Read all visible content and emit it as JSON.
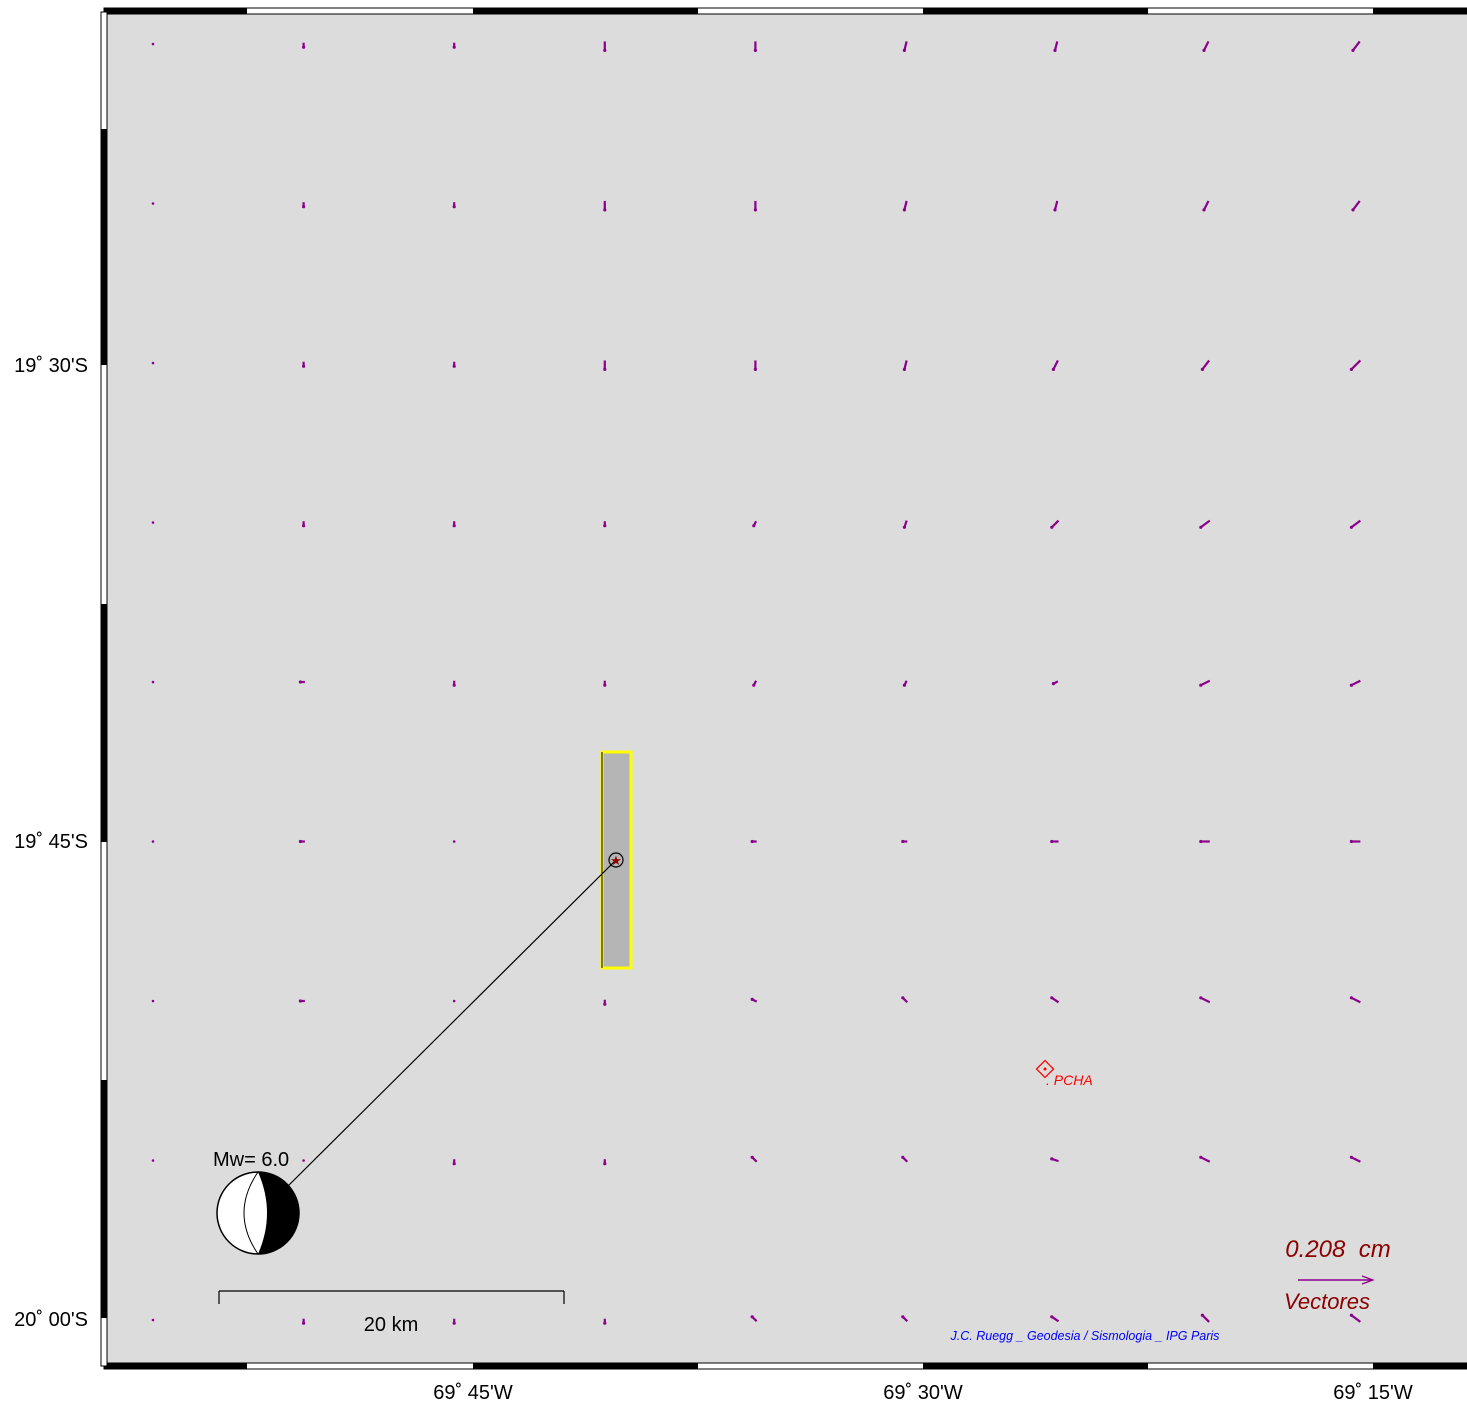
{
  "axes": {
    "lat_ticks": [
      "19˚ 30'S",
      "19˚ 45'S",
      "20˚ 00'S"
    ],
    "lon_ticks": [
      "69˚ 45'W",
      "69˚ 30'W",
      "69˚ 15'W"
    ]
  },
  "event": {
    "magnitude_label": "Mw= 6.0"
  },
  "scale_bar": {
    "label": "20 km"
  },
  "station": {
    "name": ". PCHA"
  },
  "vector_legend": {
    "magnitude": "0.208  cm",
    "caption": "Vectores"
  },
  "credit": "J.C. Ruegg _ Geodesia / Sismologia _ IPG Paris",
  "colors": {
    "map_fill": "#dcdcdc",
    "fault_fill": "#b5b5b5",
    "fault_outline": "#ffff00",
    "vectors": "#8b008b",
    "legend_text": "#8b0000",
    "station": "#ff0000",
    "credit": "#0000ff"
  },
  "vector_grid": {
    "rows": 9,
    "cols": 9,
    "vectors": [
      [
        [
          0,
          0
        ],
        [
          0,
          1
        ],
        [
          0,
          1
        ],
        [
          0,
          2
        ],
        [
          0,
          2
        ],
        [
          0.5,
          2
        ],
        [
          0.5,
          2
        ],
        [
          1,
          2
        ],
        [
          1.5,
          2
        ]
      ],
      [
        [
          0,
          0
        ],
        [
          0,
          1
        ],
        [
          0,
          1
        ],
        [
          0,
          2
        ],
        [
          0,
          2
        ],
        [
          0.5,
          2
        ],
        [
          0.5,
          2
        ],
        [
          1,
          2
        ],
        [
          1.5,
          2
        ]
      ],
      [
        [
          0,
          0
        ],
        [
          0,
          1
        ],
        [
          0,
          1
        ],
        [
          0,
          2
        ],
        [
          0,
          2
        ],
        [
          0.5,
          2
        ],
        [
          1,
          2
        ],
        [
          1.5,
          2
        ],
        [
          2,
          2
        ]
      ],
      [
        [
          0,
          0
        ],
        [
          0,
          1
        ],
        [
          0,
          1
        ],
        [
          0,
          1
        ],
        [
          0.5,
          1
        ],
        [
          0.5,
          1.5
        ],
        [
          1.5,
          1.5
        ],
        [
          2,
          1.5
        ],
        [
          2,
          1.5
        ]
      ],
      [
        [
          0,
          0
        ],
        [
          1,
          0
        ],
        [
          0,
          1
        ],
        [
          0,
          1
        ],
        [
          0.5,
          1
        ],
        [
          0.5,
          1
        ],
        [
          1,
          0.5
        ],
        [
          2,
          1
        ],
        [
          2,
          1
        ]
      ],
      [
        [
          0,
          0
        ],
        [
          1,
          0
        ],
        [
          0,
          0
        ],
        [
          0,
          0
        ],
        [
          1,
          0
        ],
        [
          1,
          0
        ],
        [
          1.5,
          0
        ],
        [
          2,
          0
        ],
        [
          2,
          0
        ]
      ],
      [
        [
          0,
          0
        ],
        [
          1,
          0
        ],
        [
          0,
          0
        ],
        [
          0,
          1
        ],
        [
          1,
          -0.5
        ],
        [
          1,
          -1
        ],
        [
          1.5,
          -1
        ],
        [
          2,
          -1
        ],
        [
          2,
          -1
        ]
      ],
      [
        [
          0,
          0
        ],
        [
          0,
          0
        ],
        [
          0,
          1
        ],
        [
          0,
          1
        ],
        [
          1,
          -1
        ],
        [
          1,
          -1
        ],
        [
          1.5,
          -0.5
        ],
        [
          2,
          -1
        ],
        [
          2,
          -1
        ]
      ],
      [
        [
          0,
          0
        ],
        [
          0,
          1
        ],
        [
          0,
          1
        ],
        [
          0,
          1
        ],
        [
          1,
          -1
        ],
        [
          1,
          -1
        ],
        [
          1.5,
          -1
        ],
        [
          1.5,
          -1.5
        ],
        [
          2,
          -1.5
        ]
      ]
    ]
  }
}
